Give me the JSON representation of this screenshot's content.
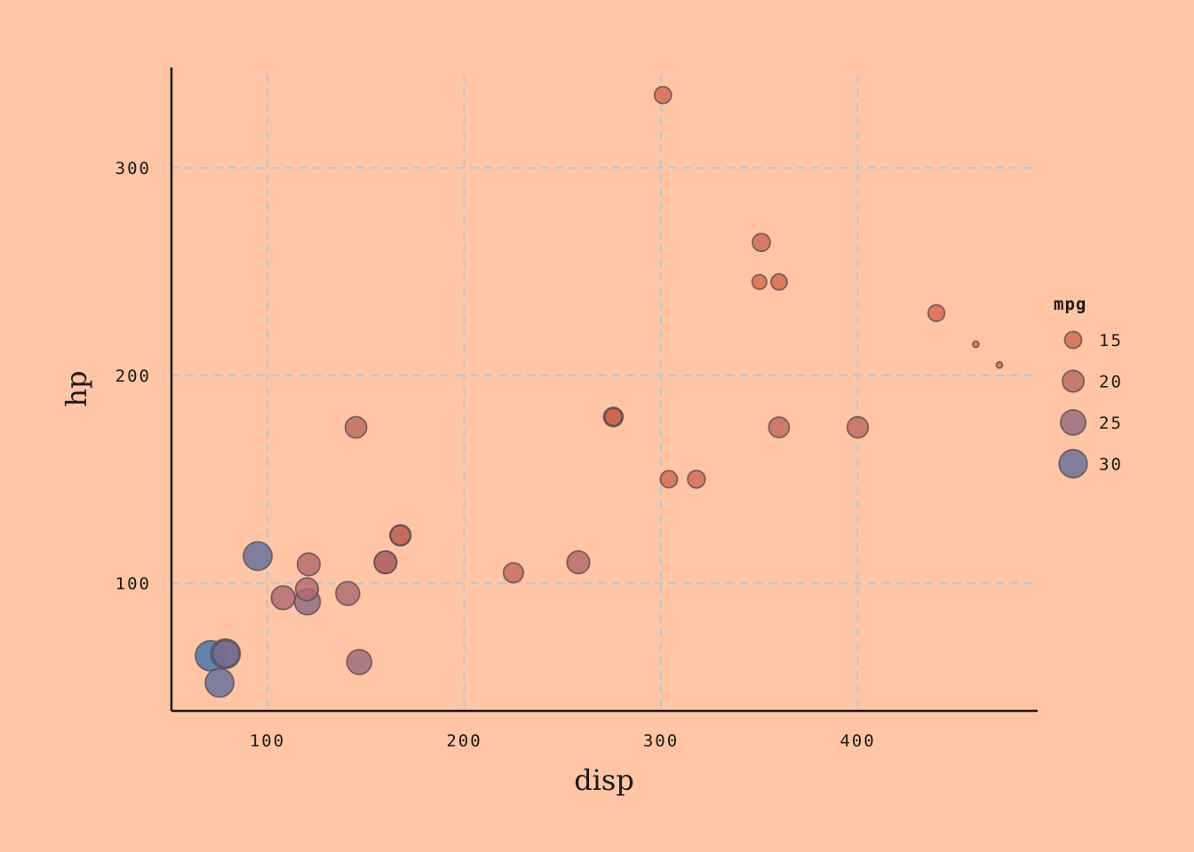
{
  "chart_data": {
    "type": "scatter",
    "xlabel": "disp",
    "ylabel": "hp",
    "xlim": [
      50.7,
      490
    ],
    "ylim": [
      39,
      349
    ],
    "x_ticks": [
      100,
      200,
      300,
      400
    ],
    "y_ticks": [
      100,
      200,
      300
    ],
    "grid": true,
    "legend": {
      "title": "mpg",
      "placement": "right",
      "entries": [
        {
          "label": "15",
          "mpg": 15
        },
        {
          "label": "20",
          "mpg": 20
        },
        {
          "label": "25",
          "mpg": 25
        },
        {
          "label": "30",
          "mpg": 30
        }
      ]
    },
    "size_color_encoding": "mpg",
    "colors": {
      "low_mpg": "#E8663A",
      "mid_mpg": "#B0666E",
      "high_mpg": "#3E6FB0",
      "grid": "#B8C8D8",
      "axis": "#1a1a1a",
      "background": "#FFC5A5"
    },
    "points": [
      {
        "disp": 160.0,
        "hp": 110,
        "mpg": 21.0
      },
      {
        "disp": 160.0,
        "hp": 110,
        "mpg": 21.0
      },
      {
        "disp": 108.0,
        "hp": 93,
        "mpg": 22.8
      },
      {
        "disp": 258.0,
        "hp": 110,
        "mpg": 21.4
      },
      {
        "disp": 360.0,
        "hp": 175,
        "mpg": 18.7
      },
      {
        "disp": 225.0,
        "hp": 105,
        "mpg": 18.1
      },
      {
        "disp": 360.0,
        "hp": 245,
        "mpg": 14.3
      },
      {
        "disp": 146.7,
        "hp": 62,
        "mpg": 24.4
      },
      {
        "disp": 140.8,
        "hp": 95,
        "mpg": 22.8
      },
      {
        "disp": 167.6,
        "hp": 123,
        "mpg": 19.2
      },
      {
        "disp": 167.6,
        "hp": 123,
        "mpg": 17.8
      },
      {
        "disp": 275.8,
        "hp": 180,
        "mpg": 16.4
      },
      {
        "disp": 275.8,
        "hp": 180,
        "mpg": 17.3
      },
      {
        "disp": 275.8,
        "hp": 180,
        "mpg": 15.2
      },
      {
        "disp": 472.0,
        "hp": 205,
        "mpg": 10.4
      },
      {
        "disp": 460.0,
        "hp": 215,
        "mpg": 10.4
      },
      {
        "disp": 440.0,
        "hp": 230,
        "mpg": 14.7
      },
      {
        "disp": 78.7,
        "hp": 66,
        "mpg": 32.4
      },
      {
        "disp": 75.7,
        "hp": 52,
        "mpg": 30.4
      },
      {
        "disp": 71.1,
        "hp": 65,
        "mpg": 33.9
      },
      {
        "disp": 120.1,
        "hp": 97,
        "mpg": 21.5
      },
      {
        "disp": 318.0,
        "hp": 150,
        "mpg": 15.5
      },
      {
        "disp": 304.0,
        "hp": 150,
        "mpg": 15.2
      },
      {
        "disp": 350.0,
        "hp": 245,
        "mpg": 13.3
      },
      {
        "disp": 400.0,
        "hp": 175,
        "mpg": 19.2
      },
      {
        "disp": 79.0,
        "hp": 66,
        "mpg": 27.3
      },
      {
        "disp": 120.3,
        "hp": 91,
        "mpg": 26.0
      },
      {
        "disp": 95.1,
        "hp": 113,
        "mpg": 30.4
      },
      {
        "disp": 351.0,
        "hp": 264,
        "mpg": 15.8
      },
      {
        "disp": 145.0,
        "hp": 175,
        "mpg": 19.7
      },
      {
        "disp": 301.0,
        "hp": 335,
        "mpg": 15.0
      },
      {
        "disp": 121.0,
        "hp": 109,
        "mpg": 21.4
      }
    ]
  }
}
